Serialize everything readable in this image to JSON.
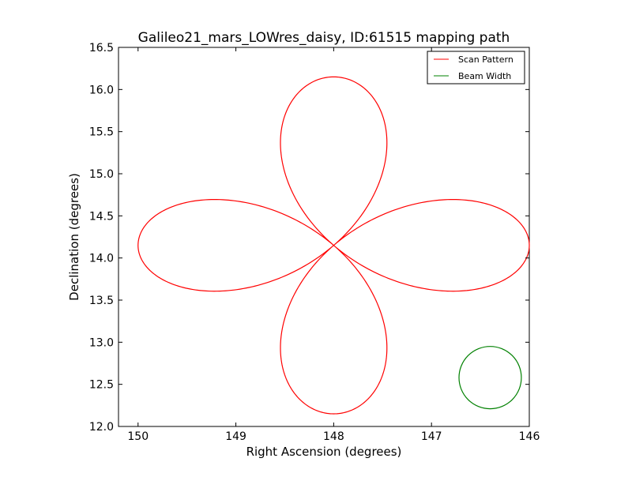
{
  "chart_data": {
    "type": "line",
    "title": "Galileo21_mars_LOWres_daisy, ID:61515 mapping path",
    "xlabel": "Right Ascension (degrees)",
    "ylabel": "Declination (degrees)",
    "xlim": [
      150.2,
      146.0
    ],
    "ylim": [
      12.0,
      16.5
    ],
    "x_inverted": true,
    "xticks": [
      150,
      149,
      148,
      147,
      146
    ],
    "yticks": [
      12.0,
      12.5,
      13.0,
      13.5,
      14.0,
      14.5,
      15.0,
      15.5,
      16.0,
      16.5
    ],
    "xtick_labels": [
      "150",
      "149",
      "148",
      "147",
      "146"
    ],
    "ytick_labels": [
      "12.0",
      "12.5",
      "13.0",
      "13.5",
      "14.0",
      "14.5",
      "15.0",
      "15.5",
      "16.0",
      "16.5"
    ],
    "grid": false,
    "legend_position": "top-right",
    "series": [
      {
        "name": "Scan Pattern",
        "color": "#ff0000",
        "kind": "daisy",
        "center": [
          148.0,
          14.15
        ],
        "petal_extent_ra": 2.0,
        "petal_extent_dec": 2.0,
        "x": [],
        "y": []
      },
      {
        "name": "Beam Width",
        "color": "#008000",
        "kind": "circle",
        "center": [
          146.4,
          12.58
        ],
        "radius_dec": 0.37
      }
    ]
  },
  "legend": {
    "items": [
      {
        "label": "Scan Pattern",
        "color": "#ff0000"
      },
      {
        "label": "Beam Width",
        "color": "#008000"
      }
    ]
  }
}
